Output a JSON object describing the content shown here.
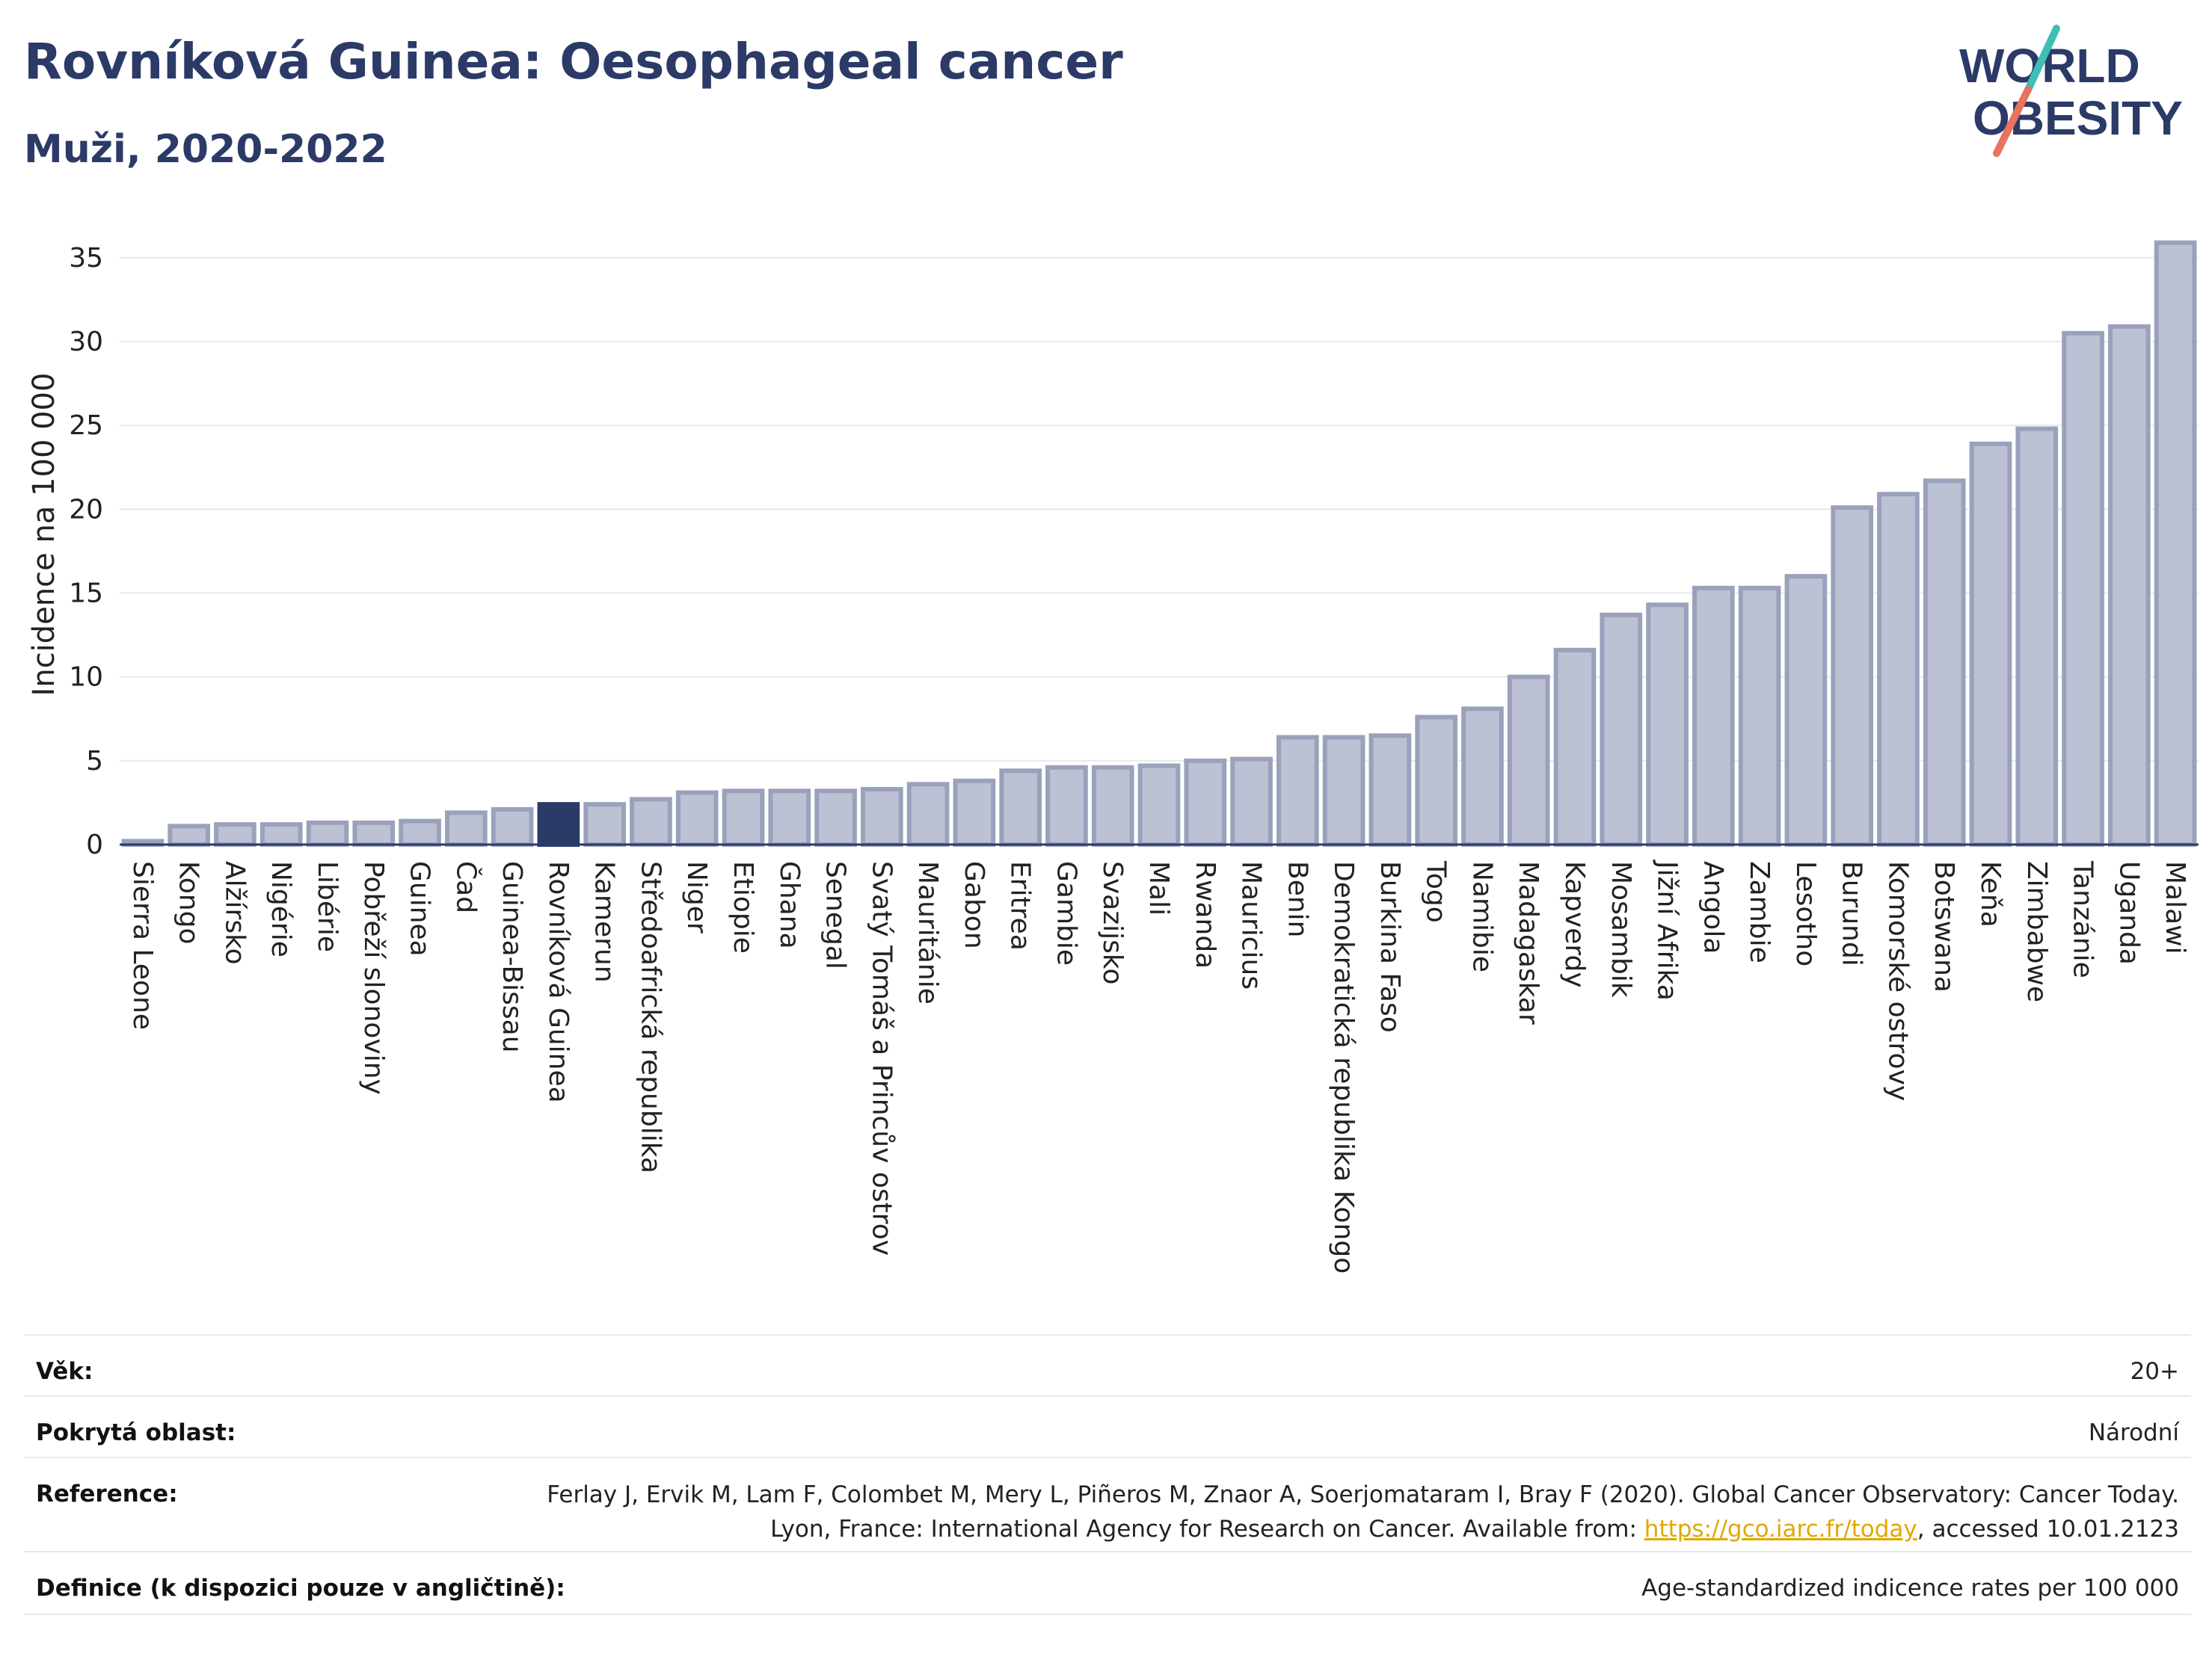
{
  "header": {
    "title": "Rovníková Guinea: Oesophageal cancer",
    "subtitle": "Muži, 2020-2022",
    "logo_line1": "WORLD",
    "logo_line2": "OBESITY"
  },
  "colors": {
    "bar_fill": "#bcc1d3",
    "bar_stroke": "#9aa1bb",
    "highlight": "#2b3a67",
    "text": "#2b3a67",
    "grid": "#e6e8ee",
    "logo_teal": "#3cbfb6",
    "logo_coral": "#e8735f",
    "link": "#e0a800"
  },
  "chart_data": {
    "type": "bar",
    "ylabel": "Incidence na 100 000",
    "ylim": [
      0,
      37
    ],
    "yticks": [
      0,
      5,
      10,
      15,
      20,
      25,
      30,
      35
    ],
    "grid": true,
    "highlight": "Rovníková Guinea",
    "categories": [
      "Sierra Leone",
      "Kongo",
      "Alžírsko",
      "Nigérie",
      "Libérie",
      "Pobřeží slonoviny",
      "Guinea",
      "Čad",
      "Guinea-Bissau",
      "Rovníková Guinea",
      "Kamerun",
      "Středoafrická republika",
      "Niger",
      "Etiopie",
      "Ghana",
      "Senegal",
      "Svatý Tomáš a Princův ostrov",
      "Mauritánie",
      "Gabon",
      "Eritrea",
      "Gambie",
      "Svazijsko",
      "Mali",
      "Rwanda",
      "Mauricius",
      "Benin",
      "Demokratická republika Kongo",
      "Burkina Faso",
      "Togo",
      "Namibie",
      "Madagaskar",
      "Kapverdy",
      "Mosambik",
      "Jižní Afrika",
      "Angola",
      "Zambie",
      "Lesotho",
      "Burundi",
      "Komorské ostrovy",
      "Botswana",
      "Keňa",
      "Zimbabwe",
      "Tanzánie",
      "Uganda",
      "Malawi"
    ],
    "values": [
      0.2,
      1.1,
      1.2,
      1.2,
      1.3,
      1.3,
      1.4,
      1.9,
      2.1,
      2.4,
      2.4,
      2.7,
      3.1,
      3.2,
      3.2,
      3.2,
      3.3,
      3.6,
      3.8,
      4.4,
      4.6,
      4.6,
      4.7,
      5.0,
      5.1,
      6.4,
      6.4,
      6.5,
      7.6,
      8.1,
      10.0,
      11.6,
      13.7,
      14.3,
      15.3,
      15.3,
      16.0,
      20.1,
      20.9,
      21.7,
      23.9,
      24.8,
      30.5,
      30.9,
      35.9
    ]
  },
  "meta": {
    "age_label": "Věk:",
    "age_value": "20+",
    "area_label": "Pokrytá oblast:",
    "area_value": "Národní",
    "ref_label": "Reference:",
    "ref_text_1": "Ferlay J, Ervik M, Lam F, Colombet M, Mery L, Piñeros M, Znaor A, Soerjomataram I, Bray F (2020). Global Cancer Observatory: Cancer Today. Lyon, France: International Agency for Research on Cancer. Available from: ",
    "ref_link": "https://gco.iarc.fr/today",
    "ref_text_2": ", accessed 10.01.2123",
    "def_label": "Definice (k dispozici pouze v angličtině):",
    "def_value": "Age-standardized indicence rates per 100 000"
  }
}
